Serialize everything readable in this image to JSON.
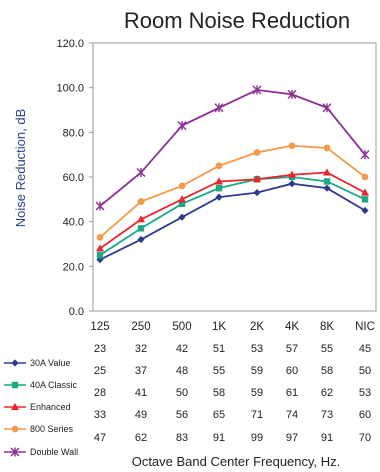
{
  "chart_data": {
    "type": "line",
    "title": "Room Noise Reduction",
    "xlabel": "Octave Band Center Frequency, Hz.",
    "ylabel": "Noise Reduction, dB",
    "ylim": [
      0,
      120
    ],
    "yticks": [
      "0.0",
      "20.0",
      "40.0",
      "60.0",
      "80.0",
      "100.0",
      "120.0"
    ],
    "categories": [
      "125",
      "250",
      "500",
      "1K",
      "2K",
      "4K",
      "8K",
      "NIC"
    ],
    "grid": false,
    "legend": "bottom-left, as data-table row labels",
    "series": [
      {
        "name": "30A Value",
        "color": "#2e3a8c",
        "marker": "diamond",
        "values": [
          23,
          32,
          42,
          51,
          53,
          57,
          55,
          45
        ]
      },
      {
        "name": "40A Classic",
        "color": "#1aaa84",
        "marker": "square",
        "values": [
          25,
          37,
          48,
          55,
          59,
          60,
          58,
          50
        ]
      },
      {
        "name": "Enhanced",
        "color": "#e8262b",
        "marker": "triangle",
        "values": [
          28,
          41,
          50,
          58,
          59,
          61,
          62,
          53
        ]
      },
      {
        "name": "800 Series",
        "color": "#f29a4a",
        "marker": "circle",
        "values": [
          33,
          49,
          56,
          65,
          71,
          74,
          73,
          60
        ]
      },
      {
        "name": "Double Wall",
        "color": "#8a2e96",
        "marker": "x",
        "values": [
          47,
          62,
          83,
          91,
          99,
          97,
          91,
          70
        ]
      }
    ]
  }
}
